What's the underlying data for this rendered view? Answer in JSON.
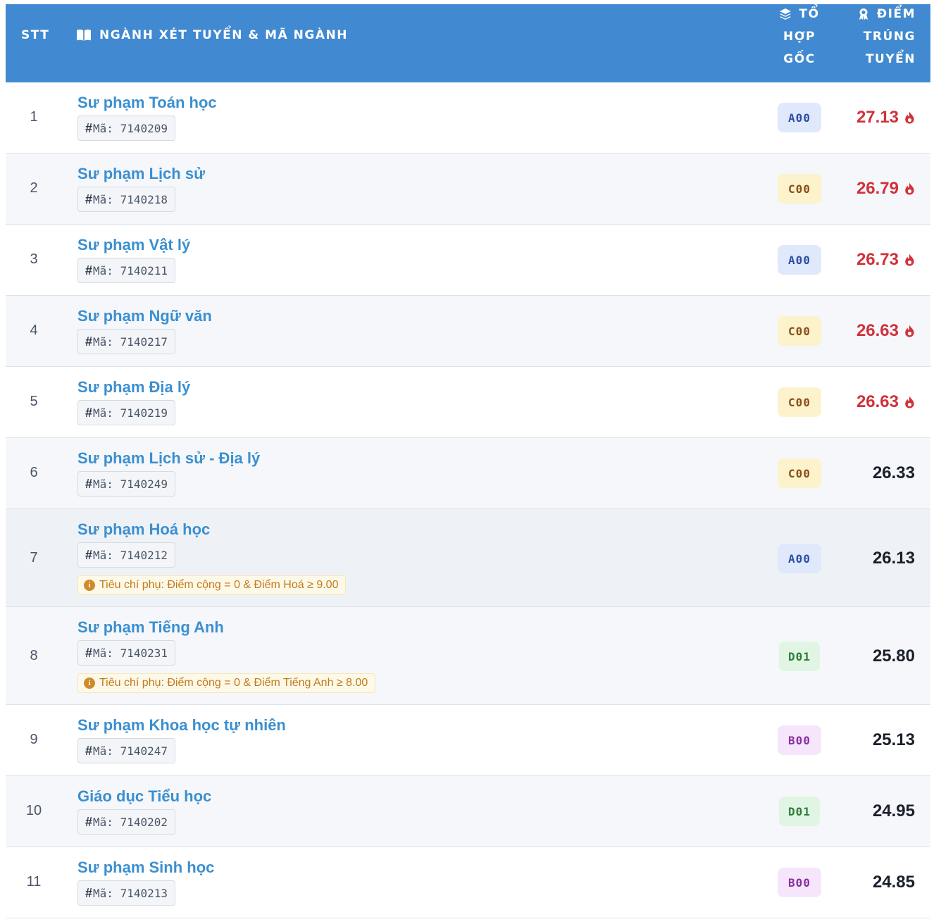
{
  "header": {
    "stt": "STT",
    "major": "NGÀNH XÉT TUYỂN & MÃ NGÀNH",
    "combo_lines": [
      "TỔ",
      "HỢP",
      "GỐC"
    ],
    "score_lines": [
      "ĐIỂM",
      "TRÚNG",
      "TUYỂN"
    ],
    "major_icon": "book-open-icon",
    "combo_icon": "layers-icon",
    "score_icon": "award-icon"
  },
  "code_prefix": "#",
  "code_label": "Mã:",
  "rows": [
    {
      "stt": "1",
      "name": "Sư phạm Toán học",
      "code": "7140209",
      "combo": "A00",
      "score": "27.13",
      "hot": true
    },
    {
      "stt": "2",
      "name": "Sư phạm Lịch sử",
      "code": "7140218",
      "combo": "C00",
      "score": "26.79",
      "hot": true
    },
    {
      "stt": "3",
      "name": "Sư phạm Vật lý",
      "code": "7140211",
      "combo": "A00",
      "score": "26.73",
      "hot": true
    },
    {
      "stt": "4",
      "name": "Sư phạm Ngữ văn",
      "code": "7140217",
      "combo": "C00",
      "score": "26.63",
      "hot": true
    },
    {
      "stt": "5",
      "name": "Sư phạm Địa lý",
      "code": "7140219",
      "combo": "C00",
      "score": "26.63",
      "hot": true
    },
    {
      "stt": "6",
      "name": "Sư phạm Lịch sử - Địa lý",
      "code": "7140249",
      "combo": "C00",
      "score": "26.33",
      "hot": false
    },
    {
      "stt": "7",
      "name": "Sư phạm Hoá học",
      "code": "7140212",
      "combo": "A00",
      "score": "26.13",
      "hot": false,
      "note": "Tiêu chí phụ: Điểm cộng = 0 & Điểm Hoá ≥ 9.00"
    },
    {
      "stt": "8",
      "name": "Sư phạm Tiếng Anh",
      "code": "7140231",
      "combo": "D01",
      "score": "25.80",
      "hot": false,
      "note": "Tiêu chí phụ: Điểm cộng = 0 & Điểm Tiếng Anh ≥ 8.00"
    },
    {
      "stt": "9",
      "name": "Sư phạm Khoa học tự nhiên",
      "code": "7140247",
      "combo": "B00",
      "score": "25.13",
      "hot": false
    },
    {
      "stt": "10",
      "name": "Giáo dục Tiểu học",
      "code": "7140202",
      "combo": "D01",
      "score": "24.95",
      "hot": false
    },
    {
      "stt": "11",
      "name": "Sư phạm Sinh học",
      "code": "7140213",
      "combo": "B00",
      "score": "24.85",
      "hot": false
    }
  ],
  "colors": {
    "header_bg": "#4189d0",
    "link": "#3b8fd0",
    "hot_score": "#d1323a"
  }
}
